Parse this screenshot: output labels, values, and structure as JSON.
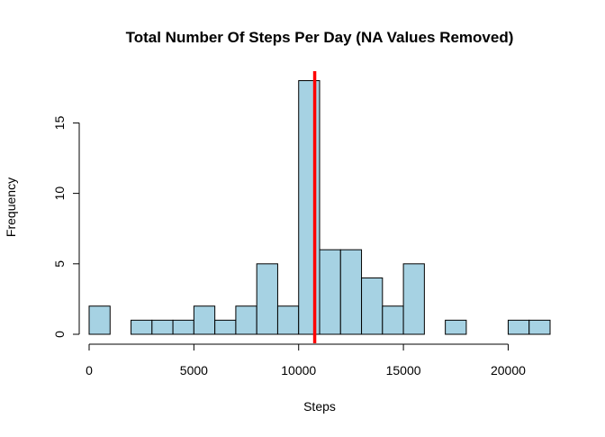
{
  "chart_data": {
    "type": "bar",
    "title": "Total Number Of Steps Per Day (NA Values Removed)",
    "xlabel": "Steps",
    "ylabel": "Frequency",
    "bin_width": 1000,
    "bins_start": [
      0,
      1000,
      2000,
      3000,
      4000,
      5000,
      6000,
      7000,
      8000,
      9000,
      10000,
      11000,
      12000,
      13000,
      14000,
      15000,
      16000,
      17000,
      18000,
      19000,
      20000,
      21000
    ],
    "values": [
      2,
      0,
      1,
      1,
      1,
      2,
      1,
      2,
      5,
      2,
      18,
      6,
      6,
      4,
      2,
      5,
      0,
      1,
      0,
      0,
      1,
      1
    ],
    "xlim": [
      0,
      22000
    ],
    "ylim": [
      0,
      18
    ],
    "x_ticks": [
      0,
      5000,
      10000,
      15000,
      20000
    ],
    "y_ticks": [
      0,
      5,
      10,
      15
    ],
    "mean_line": 10766,
    "colors": {
      "bar_fill": "#a6d2e3",
      "bar_stroke": "#000000",
      "mean_line": "#ff0000"
    },
    "grid": false
  }
}
